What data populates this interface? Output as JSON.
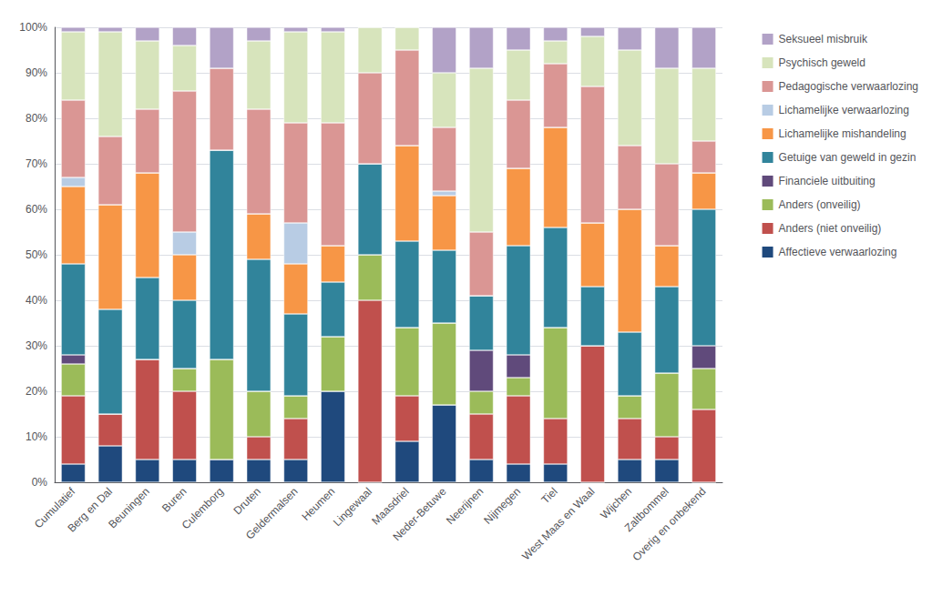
{
  "chart_data": {
    "type": "bar",
    "stacked": true,
    "categories": [
      "Cumulatief",
      "Berg en Dal",
      "Beuningen",
      "Buren",
      "Culemborg",
      "Druten",
      "Geldermalsen",
      "Heumen",
      "Lingewaal",
      "Maasdriel",
      "Neder-Betuwe",
      "Neerijnen",
      "Nijmegen",
      "Tiel",
      "West Maas en Waal",
      "Wijchen",
      "Zaltbommel",
      "Overig en onbekend"
    ],
    "series": [
      {
        "name": "Affectieve verwaarlozing",
        "color": "#1F497D",
        "values": [
          4,
          8,
          5,
          5,
          5,
          5,
          5,
          20,
          0,
          9,
          17,
          5,
          4,
          4,
          0,
          5,
          5,
          0
        ]
      },
      {
        "name": "Anders (niet onveilig)",
        "color": "#C0504D",
        "values": [
          15,
          7,
          22,
          15,
          0,
          5,
          9,
          0,
          40,
          10,
          0,
          10,
          15,
          10,
          30,
          9,
          5,
          16
        ]
      },
      {
        "name": "Anders (onveilig)",
        "color": "#9BBB59",
        "values": [
          7,
          0,
          0,
          5,
          22,
          10,
          5,
          12,
          10,
          15,
          18,
          5,
          4,
          20,
          0,
          5,
          14,
          9
        ]
      },
      {
        "name": "Financiele uitbuiting",
        "color": "#604A7B",
        "values": [
          2,
          0,
          0,
          0,
          0,
          0,
          0,
          0,
          0,
          0,
          0,
          9,
          5,
          0,
          0,
          0,
          0,
          5
        ]
      },
      {
        "name": "Getuige van geweld in gezin",
        "color": "#31849B",
        "values": [
          20,
          23,
          18,
          15,
          46,
          29,
          18,
          12,
          20,
          19,
          16,
          12,
          24,
          22,
          13,
          14,
          19,
          30
        ]
      },
      {
        "name": "Lichamelijke mishandeling",
        "color": "#F79646",
        "values": [
          17,
          23,
          23,
          10,
          0,
          10,
          11,
          8,
          0,
          21,
          12,
          0,
          17,
          22,
          14,
          27,
          9,
          8
        ]
      },
      {
        "name": "Lichamelijke verwaarlozing",
        "color": "#B8CCE4",
        "values": [
          2,
          0,
          0,
          5,
          0,
          0,
          9,
          0,
          0,
          0,
          1,
          0,
          0,
          0,
          0,
          0,
          0,
          0
        ]
      },
      {
        "name": "Pedagogische verwaarlozing",
        "color": "#DA9694",
        "values": [
          17,
          15,
          14,
          31,
          18,
          23,
          22,
          27,
          20,
          21,
          14,
          14,
          15,
          14,
          30,
          14,
          18,
          7
        ]
      },
      {
        "name": "Psychisch geweld",
        "color": "#D7E4BC",
        "values": [
          15,
          23,
          15,
          10,
          0,
          15,
          20,
          20,
          10,
          5,
          12,
          36,
          11,
          5,
          11,
          21,
          21,
          16
        ]
      },
      {
        "name": "Seksueel misbruik",
        "color": "#B2A2C7",
        "values": [
          1,
          1,
          3,
          4,
          9,
          3,
          1,
          1,
          0,
          0,
          10,
          9,
          5,
          3,
          2,
          5,
          9,
          9
        ]
      }
    ],
    "ylim": [
      0,
      100
    ],
    "yticks": [
      {
        "value": 0,
        "label": "0%"
      },
      {
        "value": 10,
        "label": "10%"
      },
      {
        "value": 20,
        "label": "20%"
      },
      {
        "value": 30,
        "label": "30%"
      },
      {
        "value": 40,
        "label": "40%"
      },
      {
        "value": 50,
        "label": "50%"
      },
      {
        "value": 60,
        "label": "60%"
      },
      {
        "value": 70,
        "label": "70%"
      },
      {
        "value": 80,
        "label": "80%"
      },
      {
        "value": 90,
        "label": "90%"
      },
      {
        "value": 100,
        "label": "100%"
      }
    ],
    "grid": true,
    "legend": "upper right"
  }
}
